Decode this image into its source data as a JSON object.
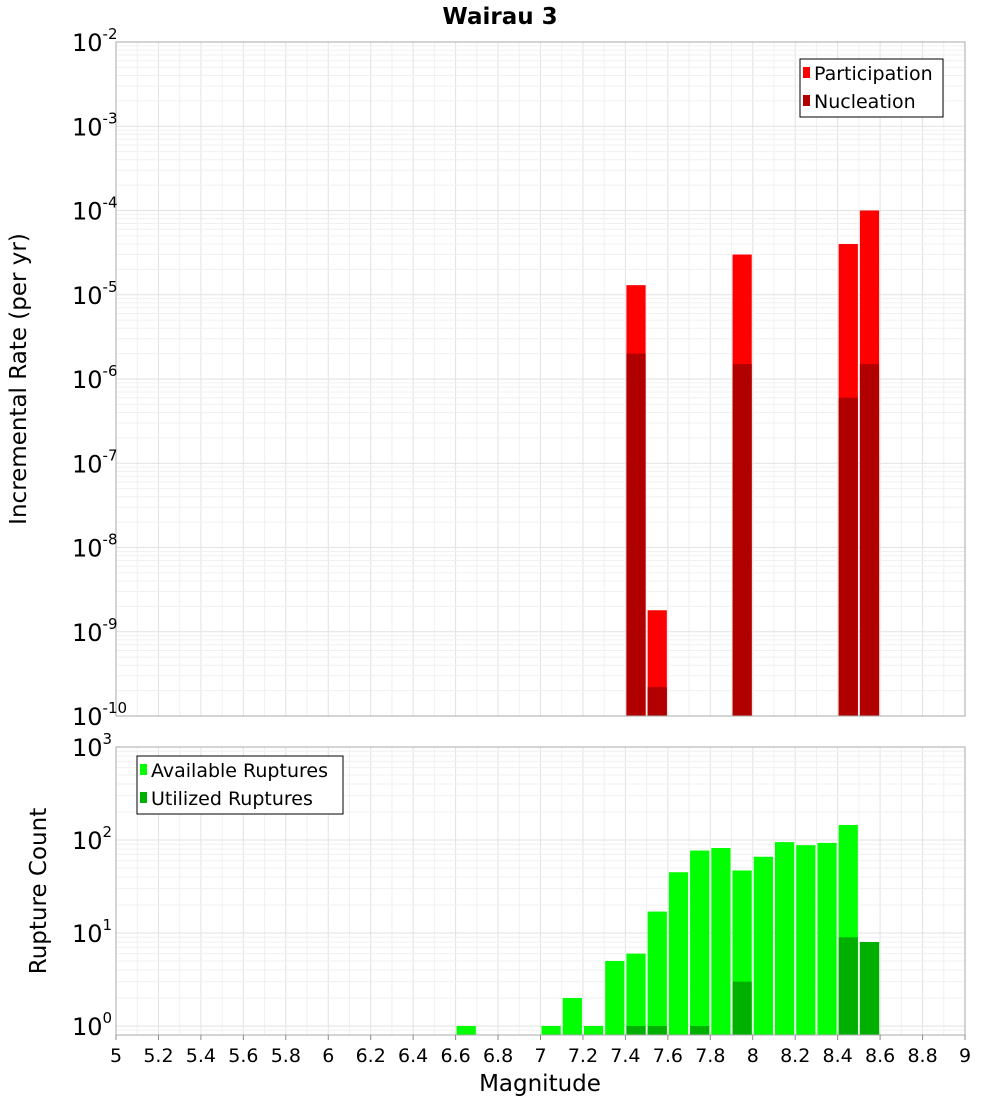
{
  "chart_data": [
    {
      "type": "bar",
      "title": "Wairau 3",
      "xlabel": "Magnitude",
      "ylabel": "Incremental Rate (per yr)",
      "yscale": "log",
      "ylim": [
        1e-10,
        0.01
      ],
      "xlim": [
        5,
        9
      ],
      "grid": true,
      "legend_placement": "top-right",
      "series": [
        {
          "name": "Participation",
          "color": "#ff0000",
          "x": [
            7.45,
            7.55,
            7.95,
            8.45,
            8.55
          ],
          "values": [
            1.3e-05,
            1.8e-09,
            3e-05,
            4e-05,
            0.0001
          ]
        },
        {
          "name": "Nucleation",
          "color": "#b00000",
          "x": [
            7.45,
            7.55,
            7.95,
            8.45,
            8.55
          ],
          "values": [
            2e-06,
            2.2e-10,
            1.5e-06,
            6e-07,
            1.5e-06
          ]
        }
      ]
    },
    {
      "type": "bar",
      "title": "",
      "xlabel": "Magnitude",
      "ylabel": "Rupture Count",
      "yscale": "log",
      "ylim": [
        0.8,
        1000
      ],
      "xlim": [
        5,
        9
      ],
      "grid": true,
      "legend_placement": "top-left",
      "series": [
        {
          "name": "Available Ruptures",
          "color": "#00ff00",
          "x": [
            6.65,
            7.05,
            7.15,
            7.25,
            7.35,
            7.45,
            7.55,
            7.65,
            7.75,
            7.85,
            7.95,
            8.05,
            8.15,
            8.25,
            8.35,
            8.45,
            8.55
          ],
          "values": [
            1,
            1,
            2,
            1,
            5,
            6,
            17,
            45,
            77,
            82,
            47,
            66,
            95,
            88,
            93,
            145,
            8
          ]
        },
        {
          "name": "Utilized Ruptures",
          "color": "#00b000",
          "x": [
            7.45,
            7.55,
            7.75,
            7.95,
            8.45,
            8.55
          ],
          "values": [
            1,
            1,
            1,
            3,
            9,
            8
          ]
        }
      ]
    }
  ],
  "axes": {
    "x_ticks": [
      "5",
      "5.2",
      "5.4",
      "5.6",
      "5.8",
      "6",
      "6.2",
      "6.4",
      "6.6",
      "6.8",
      "7",
      "7.2",
      "7.4",
      "7.6",
      "7.8",
      "8",
      "8.2",
      "8.4",
      "8.6",
      "8.8",
      "9"
    ],
    "top_y_exponents": [
      "-2",
      "-3",
      "-4",
      "-5",
      "-6",
      "-7",
      "-8",
      "-9",
      "-10"
    ],
    "bottom_y_exponents": [
      "3",
      "2",
      "1",
      "0"
    ],
    "y_base": "10"
  }
}
